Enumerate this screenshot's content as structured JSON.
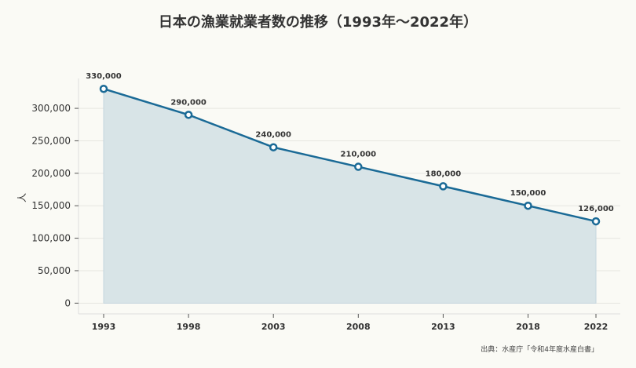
{
  "chart_data": {
    "type": "area",
    "title": "日本の漁業就業者数の推移（1993年〜2022年）",
    "xlabel": "",
    "ylabel": "人",
    "x": [
      "1993",
      "1998",
      "2003",
      "2008",
      "2013",
      "2018",
      "2022"
    ],
    "values": [
      330000,
      290000,
      240000,
      210000,
      180000,
      150000,
      126000
    ],
    "data_labels": [
      "330,000",
      "290,000",
      "240,000",
      "210,000",
      "180,000",
      "150,000",
      "126,000"
    ],
    "yticks": [
      0,
      50000,
      100000,
      150000,
      200000,
      250000,
      300000
    ],
    "ytick_labels": [
      "0",
      "50,000",
      "100,000",
      "150,000",
      "200,000",
      "250,000",
      "300,000"
    ],
    "ylim": [
      -16500,
      346000
    ],
    "grid": true,
    "colors": {
      "line": "#1a6a96",
      "fill": "#d8e4e7",
      "marker_fill": "#ffffff"
    },
    "source": "出典：水産庁「令和4年度水産白書」"
  }
}
